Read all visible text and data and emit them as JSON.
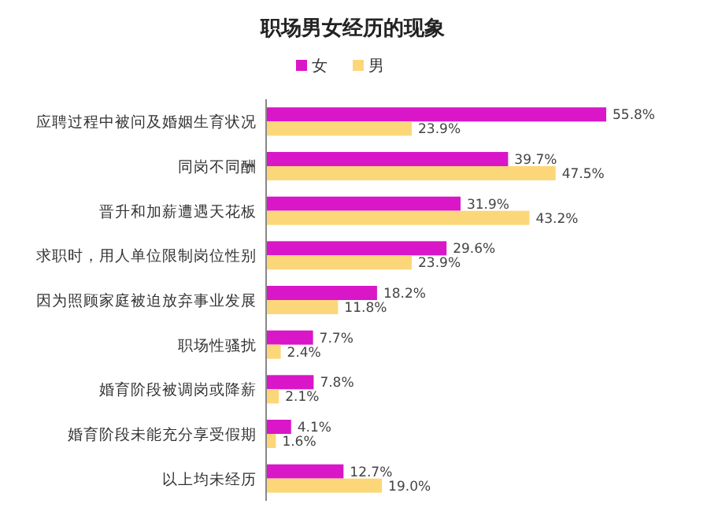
{
  "chart_data": {
    "type": "bar",
    "orientation": "horizontal",
    "title": "职场男女经历的现象",
    "legend": "top",
    "categories": [
      "应聘过程中被问及婚姻生育状况",
      "同岗不同酬",
      "晋升和加薪遭遇天花板",
      "求职时，用人单位限制岗位性别",
      "因为照顾家庭被迫放弃事业发展",
      "职场性骚扰",
      "婚育阶段被调岗或降薪",
      "婚育阶段未能充分享受假期",
      "以上均未经历"
    ],
    "series": [
      {
        "name": "女",
        "color": "#d916c8",
        "values": [
          55.8,
          39.7,
          31.9,
          29.6,
          18.2,
          7.7,
          7.8,
          4.1,
          12.7
        ],
        "value_labels": [
          "55.8%",
          "39.7%",
          "31.9%",
          "29.6%",
          "18.2%",
          "7.7%",
          "7.8%",
          "4.1%",
          "12.7%"
        ]
      },
      {
        "name": "男",
        "color": "#fcd77a",
        "values": [
          23.9,
          47.5,
          43.2,
          23.9,
          11.8,
          2.4,
          2.1,
          1.6,
          19.0
        ],
        "value_labels": [
          "23.9%",
          "47.5%",
          "43.2%",
          "23.9%",
          "11.8%",
          "2.4%",
          "2.1%",
          "1.6%",
          "19.0%"
        ]
      }
    ]
  }
}
